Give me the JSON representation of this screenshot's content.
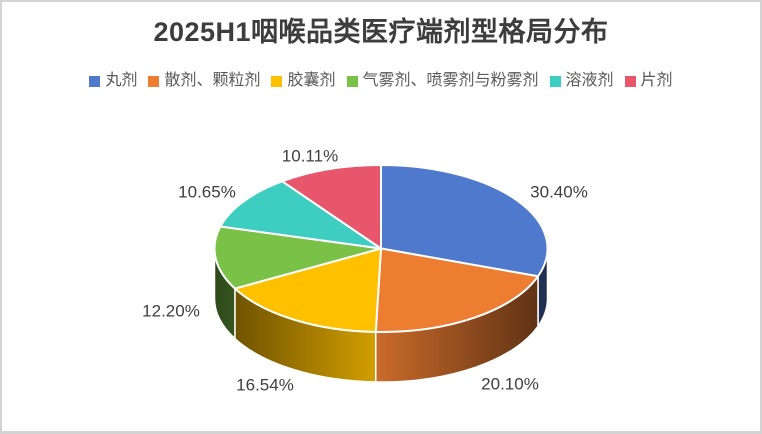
{
  "frame": {
    "border_color": "#d3d3d3",
    "background": "#ffffff"
  },
  "title": {
    "text": "2025H1咽喉品类医疗端剂型格局分布",
    "color": "#3d3d3d"
  },
  "legend": {
    "position": "top",
    "text_color": "#595959",
    "items": [
      {
        "label": "丸剂",
        "color": "#4E79CD"
      },
      {
        "label": "散剂、颗粒剂",
        "color": "#ED7D31"
      },
      {
        "label": "胶囊剂",
        "color": "#FFC000"
      },
      {
        "label": "气雾剂、喷雾剂与粉雾剂",
        "color": "#7AC148"
      },
      {
        "label": "溶液剂",
        "color": "#3DCDC1"
      },
      {
        "label": "片剂",
        "color": "#E8566B"
      }
    ]
  },
  "chart_data": {
    "type": "pie",
    "style": "3d",
    "title": "2025H1咽喉品类医疗端剂型格局分布",
    "categories": [
      "丸剂",
      "散剂、颗粒剂",
      "胶囊剂",
      "气雾剂、喷雾剂与粉雾剂",
      "溶液剂",
      "片剂"
    ],
    "values": [
      30.4,
      20.1,
      16.54,
      12.2,
      10.65,
      10.11
    ],
    "display_labels": [
      "30.40%",
      "20.10%",
      "16.54%",
      "12.20%",
      "10.65%",
      "10.11%"
    ],
    "colors": [
      "#4E79CD",
      "#ED7D31",
      "#FFC000",
      "#7AC148",
      "#3DCDC1",
      "#E8566B"
    ],
    "label_color": "#404040",
    "legend_position": "top",
    "start_angle_deg": 0,
    "direction": "clockwise"
  }
}
